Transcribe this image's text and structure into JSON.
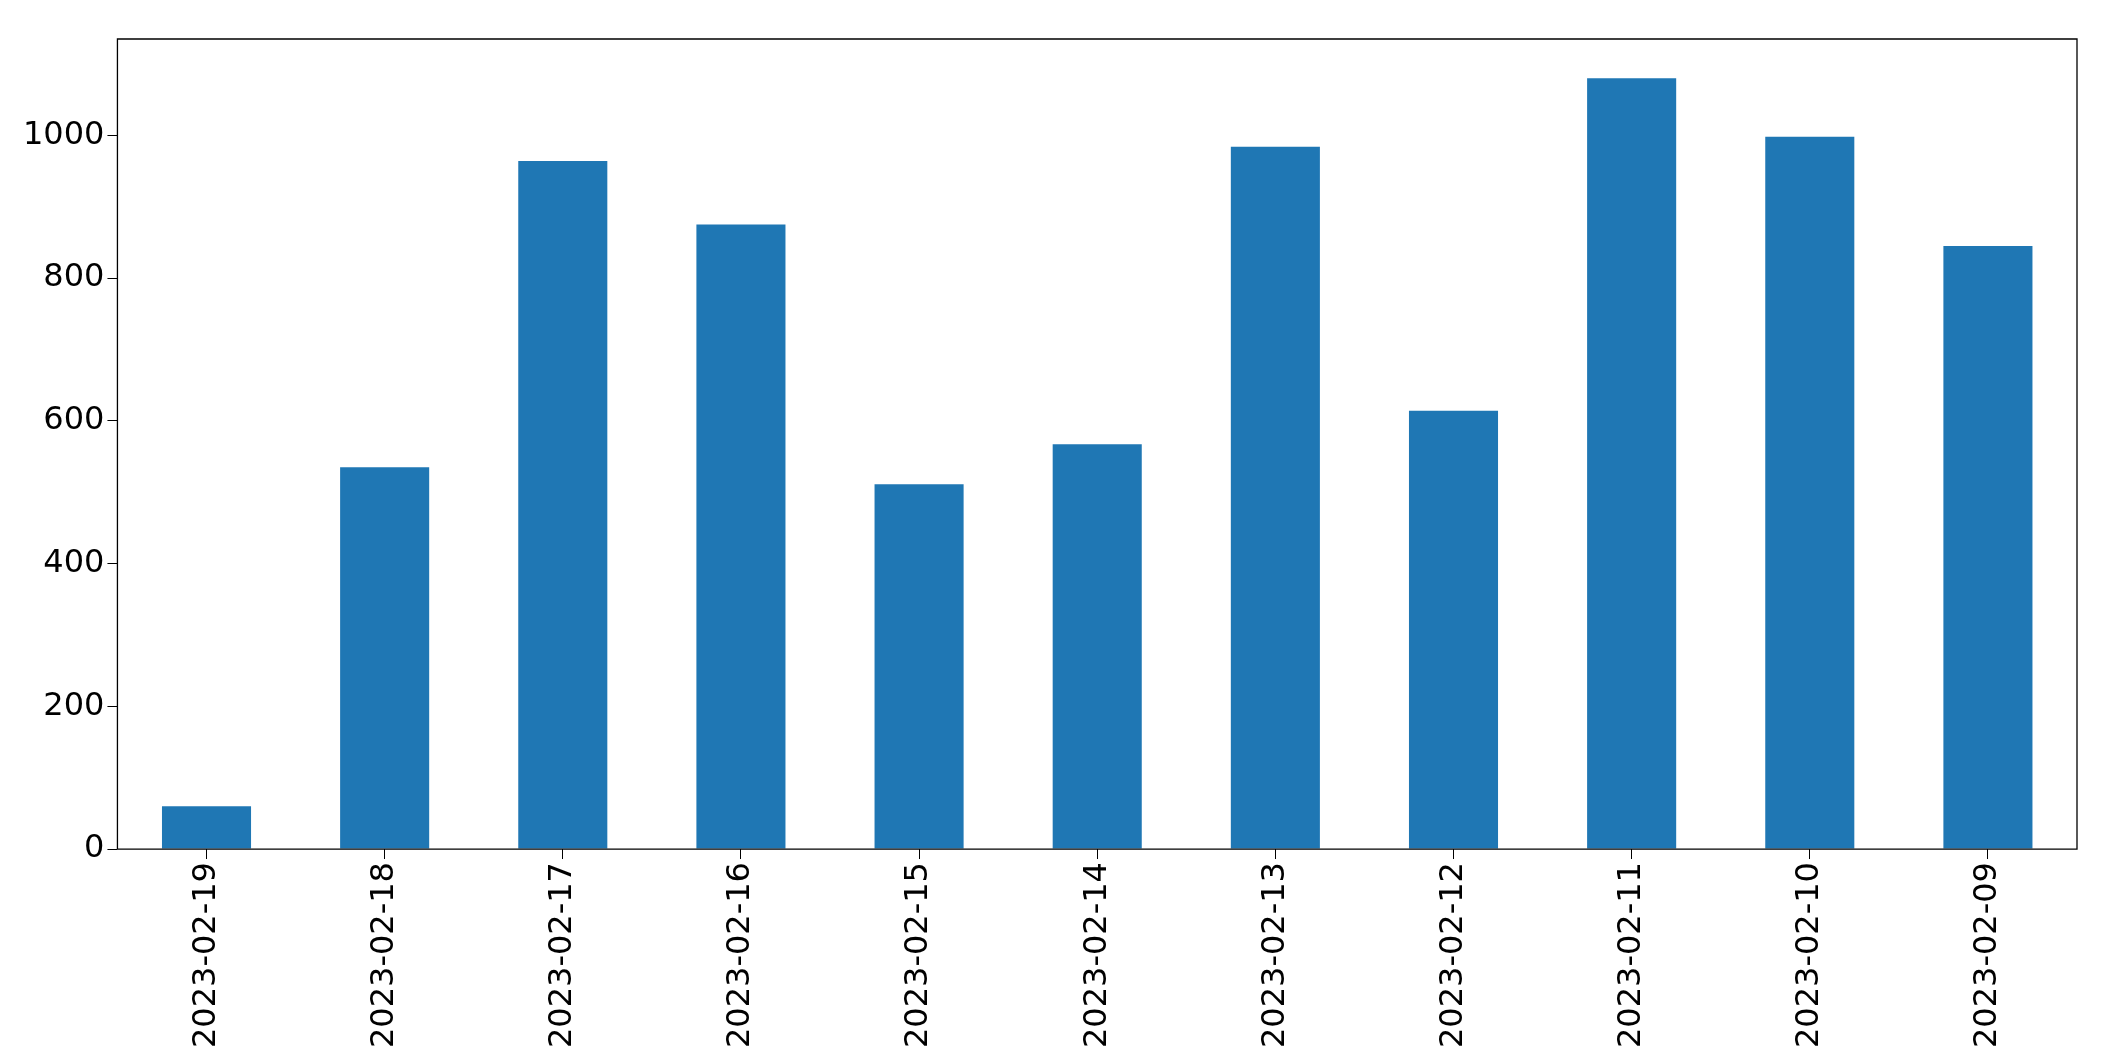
{
  "chart_data": {
    "type": "bar",
    "categories": [
      "2023-02-19",
      "2023-02-18",
      "2023-02-17",
      "2023-02-16",
      "2023-02-15",
      "2023-02-14",
      "2023-02-13",
      "2023-02-12",
      "2023-02-11",
      "2023-02-10",
      "2023-02-09"
    ],
    "values": [
      60,
      535,
      964,
      875,
      511,
      567,
      984,
      614,
      1080,
      998,
      845
    ],
    "color": "#1f77b4",
    "ylim": [
      0,
      1135
    ],
    "yticks": [
      0,
      200,
      400,
      600,
      800,
      1000
    ],
    "grid": false,
    "legend": false
  }
}
